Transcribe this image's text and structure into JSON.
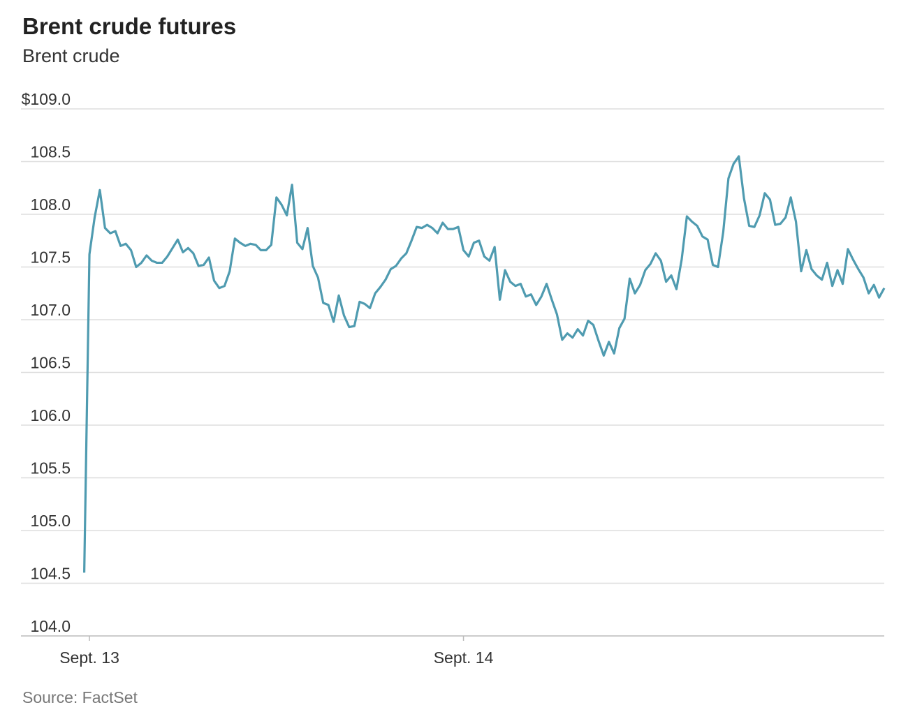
{
  "chart_data": {
    "type": "line",
    "title": "Brent crude futures",
    "subtitle": "Brent crude",
    "source": "Source: FactSet",
    "color": "#4f9bb0",
    "grid": true,
    "ylim": [
      104,
      109
    ],
    "yticks": [
      {
        "value": 104,
        "label": "104.0"
      },
      {
        "value": 104.5,
        "label": "104.5"
      },
      {
        "value": 105,
        "label": "105.0"
      },
      {
        "value": 105.5,
        "label": "105.5"
      },
      {
        "value": 106,
        "label": "106.0"
      },
      {
        "value": 106.5,
        "label": "106.5"
      },
      {
        "value": 107,
        "label": "107.0"
      },
      {
        "value": 107.5,
        "label": "107.5"
      },
      {
        "value": 108,
        "label": "108.0"
      },
      {
        "value": 108.5,
        "label": "108.5"
      },
      {
        "value": 109,
        "label": "$109.0"
      }
    ],
    "xlim": [
      0,
      154
    ],
    "xticks": [
      {
        "value": 1,
        "label": "Sept. 13"
      },
      {
        "value": 73,
        "label": "Sept. 14"
      }
    ],
    "values": [
      104.6,
      107.62,
      107.97,
      108.23,
      107.87,
      107.82,
      107.84,
      107.7,
      107.72,
      107.66,
      107.5,
      107.54,
      107.61,
      107.56,
      107.54,
      107.54,
      107.6,
      107.68,
      107.76,
      107.64,
      107.68,
      107.63,
      107.51,
      107.52,
      107.59,
      107.37,
      107.3,
      107.32,
      107.46,
      107.77,
      107.73,
      107.7,
      107.72,
      107.71,
      107.66,
      107.66,
      107.71,
      108.16,
      108.09,
      107.99,
      108.28,
      107.73,
      107.67,
      107.87,
      107.51,
      107.4,
      107.16,
      107.14,
      106.98,
      107.23,
      107.04,
      106.93,
      106.94,
      107.17,
      107.15,
      107.11,
      107.25,
      107.31,
      107.38,
      107.48,
      107.51,
      107.58,
      107.63,
      107.75,
      107.88,
      107.87,
      107.9,
      107.87,
      107.82,
      107.92,
      107.86,
      107.86,
      107.88,
      107.66,
      107.6,
      107.73,
      107.75,
      107.6,
      107.56,
      107.69,
      107.19,
      107.47,
      107.36,
      107.32,
      107.34,
      107.22,
      107.24,
      107.14,
      107.22,
      107.34,
      107.19,
      107.05,
      106.81,
      106.87,
      106.83,
      106.91,
      106.85,
      106.99,
      106.95,
      106.8,
      106.66,
      106.79,
      106.68,
      106.92,
      107.01,
      107.39,
      107.25,
      107.33,
      107.47,
      107.53,
      107.63,
      107.56,
      107.36,
      107.42,
      107.29,
      107.57,
      107.98,
      107.93,
      107.89,
      107.79,
      107.76,
      107.52,
      107.5,
      107.83,
      108.34,
      108.48,
      108.55,
      108.15,
      107.89,
      107.88,
      107.99,
      108.2,
      108.14,
      107.9,
      107.91,
      107.97,
      108.16,
      107.93,
      107.46,
      107.66,
      107.48,
      107.42,
      107.38,
      107.54,
      107.32,
      107.47,
      107.34,
      107.67,
      107.57,
      107.48,
      107.4,
      107.25,
      107.33,
      107.21,
      107.3
    ]
  }
}
